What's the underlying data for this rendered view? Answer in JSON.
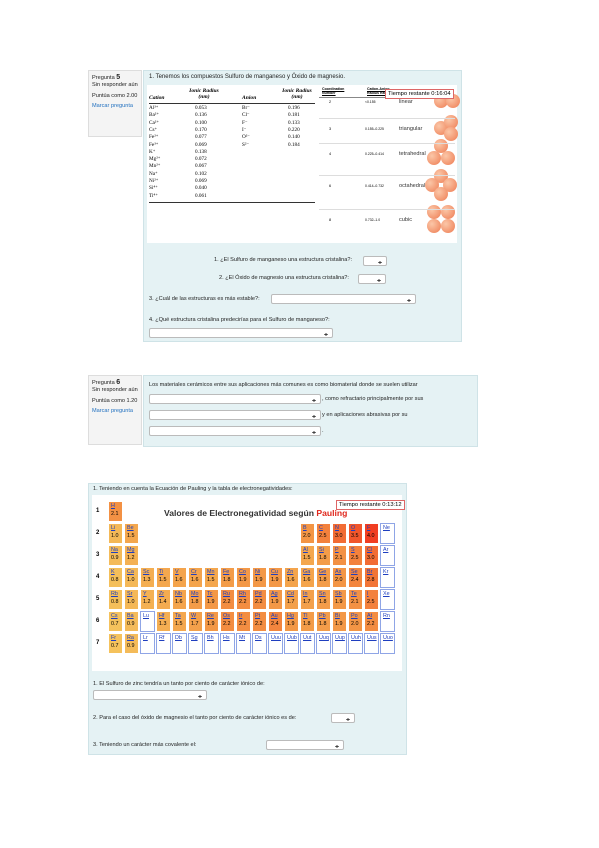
{
  "question5": {
    "label": "Pregunta",
    "number": "5",
    "status": "Sin responder aún",
    "score": "Puntúa como 2.00",
    "flag": "Marcar pregunta",
    "prompt": "1. Tenemos los compuestos Sulfuro de manganeso y Óxido de magnesio.",
    "ionic_table": {
      "headers": [
        "Cation",
        "Ionic Radius (nm)",
        "Anion",
        "Ionic Radius (nm)"
      ],
      "rows": [
        [
          "Al³⁺",
          "0.053",
          "Br⁻",
          "0.196"
        ],
        [
          "Ba²⁺",
          "0.136",
          "Cl⁻",
          "0.181"
        ],
        [
          "Ca²⁺",
          "0.100",
          "F⁻",
          "0.133"
        ],
        [
          "Cs⁺",
          "0.170",
          "I⁻",
          "0.220"
        ],
        [
          "Fe²⁺",
          "0.077",
          "O²⁻",
          "0.140"
        ],
        [
          "Fe³⁺",
          "0.069",
          "S²⁻",
          "0.184"
        ],
        [
          "K⁺",
          "0.138"
        ],
        [
          "Mg²⁺",
          "0.072"
        ],
        [
          "Mn²⁺",
          "0.067"
        ],
        [
          "Na⁺",
          "0.102"
        ],
        [
          "Ni²⁺",
          "0.069"
        ],
        [
          "Si⁴⁺",
          "0.040"
        ],
        [
          "Ti⁴⁺",
          "0.061"
        ]
      ]
    },
    "coordination": {
      "headers": [
        "Coordination Number",
        "Cation-Anion Radius Ratio"
      ],
      "rows": [
        [
          "2",
          "<0.155",
          "linear"
        ],
        [
          "3",
          "0.155–0.225",
          "triangular"
        ],
        [
          "4",
          "0.225–0.414",
          "tetrahedral"
        ],
        [
          "6",
          "0.414–0.732",
          "octahedral"
        ],
        [
          "8",
          "0.732–1.0",
          "cubic"
        ]
      ]
    },
    "timer": "Tiempo restante 0:16:04",
    "questions": [
      "1. ¿El Sulfuro de manganeso una estructura cristalina?:",
      "2. ¿El Óxido de magnesio una estructura cristalina?:",
      "3. ¿Cuál de las estructuras es más estable?:",
      "4. ¿Qué estructura cristalina predecirías para el Sulfuro de manganeso?:"
    ]
  },
  "question6": {
    "label": "Pregunta",
    "number": "6",
    "status": "Sin responder aún",
    "score": "Puntúa como 1.20",
    "flag": "Marcar pregunta",
    "prompt": "Los materiales cerámicos entre sus aplicaciones más comunes es como biomaterial donde se suelen utilizar",
    "blanks": [
      ", como refractario principalmente por sus",
      "y en aplicaciones abrasivas por su",
      "."
    ]
  },
  "question7": {
    "prompt": "1. Teniendo en cuenta la Ecuación de Pauling y la tabla de electronegatividades:",
    "table_title": "Valores de Electronegatividad según",
    "table_title_highlight": "Pauling",
    "timer": "Tiempo restante 0:13:12",
    "periods": [
      {
        "number": "1",
        "elements": [
          [
            "H",
            "2.1"
          ]
        ]
      },
      {
        "number": "2",
        "elements": [
          [
            "Li",
            "1.0"
          ],
          [
            "Be",
            "1.5"
          ],
          [
            "B",
            "2.0"
          ],
          [
            "C",
            "2.5"
          ],
          [
            "N",
            "3.0"
          ],
          [
            "O",
            "3.5"
          ],
          [
            "F",
            "4.0"
          ],
          [
            "Ne",
            null
          ]
        ]
      },
      {
        "number": "3",
        "elements": [
          [
            "Na",
            "0.9"
          ],
          [
            "Mg",
            "1.2"
          ],
          [
            "Al",
            "1.5"
          ],
          [
            "Si",
            "1.8"
          ],
          [
            "P",
            "2.1"
          ],
          [
            "S",
            "2.5"
          ],
          [
            "Cl",
            "3.0"
          ],
          [
            "Ar",
            null
          ]
        ]
      },
      {
        "number": "4",
        "elements": [
          [
            "K",
            "0.8"
          ],
          [
            "Ca",
            "1.0"
          ],
          [
            "Sc",
            "1.3"
          ],
          [
            "Ti",
            "1.5"
          ],
          [
            "V",
            "1.6"
          ],
          [
            "Cr",
            "1.6"
          ],
          [
            "Mn",
            "1.5"
          ],
          [
            "Fe",
            "1.8"
          ],
          [
            "Co",
            "1.9"
          ],
          [
            "Ni",
            "1.9"
          ],
          [
            "Cu",
            "1.9"
          ],
          [
            "Zn",
            "1.6"
          ],
          [
            "Ga",
            "1.6"
          ],
          [
            "Ge",
            "1.8"
          ],
          [
            "As",
            "2.0"
          ],
          [
            "Se",
            "2.4"
          ],
          [
            "Br",
            "2.8"
          ],
          [
            "Kr",
            null
          ]
        ]
      },
      {
        "number": "5",
        "elements": [
          [
            "Rb",
            "0.8"
          ],
          [
            "Sr",
            "1.0"
          ],
          [
            "Y",
            "1.2"
          ],
          [
            "Zr",
            "1.4"
          ],
          [
            "Nb",
            "1.6"
          ],
          [
            "Mo",
            "1.8"
          ],
          [
            "Tc",
            "1.9"
          ],
          [
            "Ru",
            "2.2"
          ],
          [
            "Rh",
            "2.2"
          ],
          [
            "Pd",
            "2.2"
          ],
          [
            "Ag",
            "1.9"
          ],
          [
            "Cd",
            "1.7"
          ],
          [
            "In",
            "1.7"
          ],
          [
            "Sn",
            "1.8"
          ],
          [
            "Sb",
            "1.9"
          ],
          [
            "Te",
            "2.1"
          ],
          [
            "I",
            "2.5"
          ],
          [
            "Xe",
            null
          ]
        ]
      },
      {
        "number": "6",
        "elements": [
          [
            "Cs",
            "0.7"
          ],
          [
            "Ba",
            "0.9"
          ],
          [
            "Lu",
            null
          ],
          [
            "Hf",
            "1.3"
          ],
          [
            "Ta",
            "1.5"
          ],
          [
            "W",
            "1.7"
          ],
          [
            "Re",
            "1.9"
          ],
          [
            "Os",
            "2.2"
          ],
          [
            "Ir",
            "2.2"
          ],
          [
            "Pt",
            "2.2"
          ],
          [
            "Au",
            "2.4"
          ],
          [
            "Hg",
            "1.9"
          ],
          [
            "Tl",
            "1.8"
          ],
          [
            "Pb",
            "1.8"
          ],
          [
            "Bi",
            "1.9"
          ],
          [
            "Po",
            "2.0"
          ],
          [
            "At",
            "2.2"
          ],
          [
            "Rn",
            null
          ]
        ]
      },
      {
        "number": "7",
        "elements": [
          [
            "Fr",
            "0.7"
          ],
          [
            "Ra",
            "0.9"
          ],
          [
            "Lr",
            null
          ],
          [
            "Rf",
            null
          ],
          [
            "Db",
            null
          ],
          [
            "Sg",
            null
          ],
          [
            "Bh",
            null
          ],
          [
            "Hs",
            null
          ],
          [
            "Mt",
            null
          ],
          [
            "Ds",
            null
          ],
          [
            "Uuu",
            null
          ],
          [
            "Uub",
            null
          ],
          [
            "Uut",
            null
          ],
          [
            "Uuq",
            null
          ],
          [
            "Uup",
            null
          ],
          [
            "Uuh",
            null
          ],
          [
            "Uus",
            null
          ],
          [
            "Uuo",
            null
          ]
        ]
      }
    ],
    "questions": [
      "1. El Sulfuro de zinc tendría un tanto por ciento de carácter iónico de:",
      "2. Para el caso del óxido de magnesio el tanto por ciento de carácter iónico es de:",
      "3. Teniendo un carácter más covalente el:"
    ]
  }
}
